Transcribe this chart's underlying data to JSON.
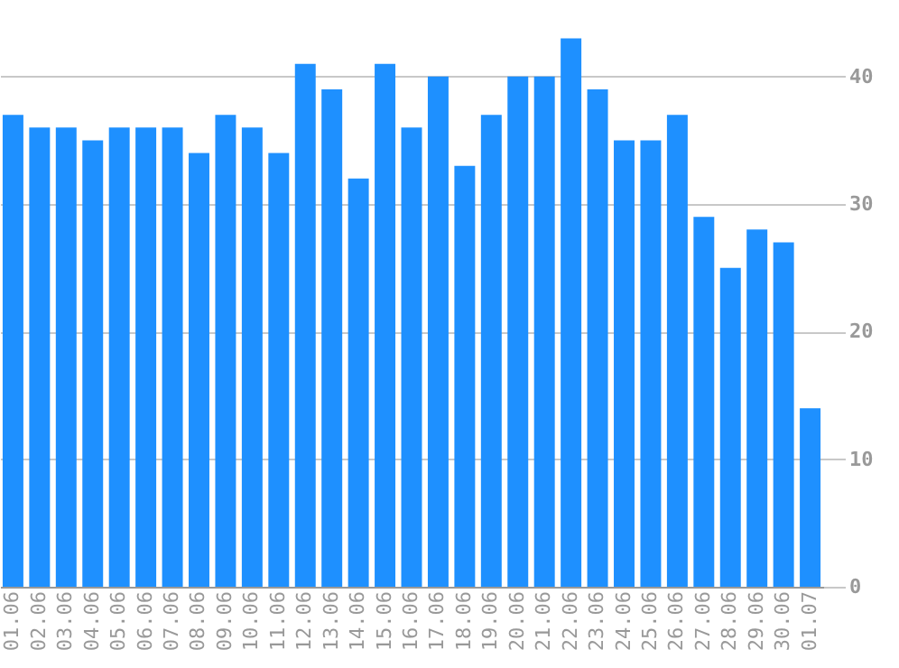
{
  "chart_data": {
    "type": "bar",
    "categories": [
      "01.06",
      "02.06",
      "03.06",
      "04.06",
      "05.06",
      "06.06",
      "07.06",
      "08.06",
      "09.06",
      "10.06",
      "11.06",
      "12.06",
      "13.06",
      "14.06",
      "15.06",
      "16.06",
      "17.06",
      "18.06",
      "19.06",
      "20.06",
      "21.06",
      "22.06",
      "23.06",
      "24.06",
      "25.06",
      "26.06",
      "27.06",
      "28.06",
      "29.06",
      "30.06",
      "01.07"
    ],
    "values": [
      37,
      36,
      36,
      35,
      36,
      36,
      36,
      34,
      37,
      36,
      34,
      41,
      39,
      32,
      41,
      36,
      40,
      33,
      37,
      40,
      40,
      43,
      39,
      35,
      35,
      37,
      29,
      25,
      28,
      27,
      14
    ],
    "color": "#1e90ff",
    "ylim": [
      0,
      46
    ],
    "yticks": [
      0,
      10,
      20,
      30,
      40
    ],
    "grid": "y"
  }
}
